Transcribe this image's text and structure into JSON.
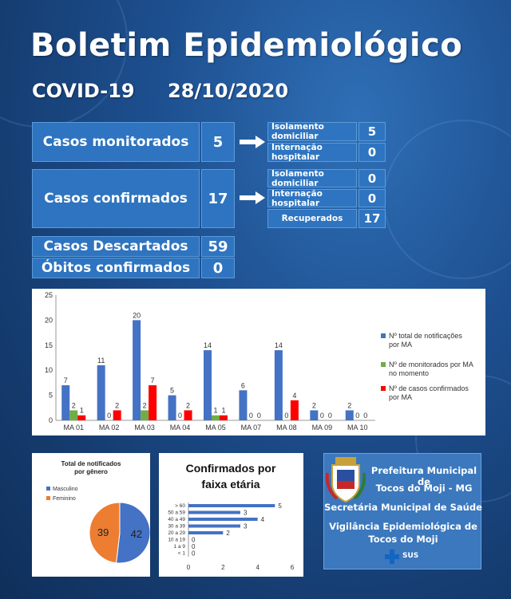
{
  "header": {
    "title": "Boletim Epidemiológico",
    "disease": "COVID-19",
    "date": "28/10/2020"
  },
  "summary": {
    "monitored": {
      "label": "Casos monitorados",
      "value": "5",
      "breakdown": [
        {
          "label": "Isolamento domiciliar",
          "value": "5"
        },
        {
          "label": "Internação hospitalar",
          "value": "0"
        }
      ]
    },
    "confirmed": {
      "label": "Casos confirmados",
      "value": "17",
      "breakdown": [
        {
          "label": "Isolamento domiciliar",
          "value": "0"
        },
        {
          "label": "Internação hospitalar",
          "value": "0"
        },
        {
          "label": "Recuperados",
          "value": "17"
        }
      ]
    },
    "discarded": {
      "label": "Casos Descartados",
      "value": "59"
    },
    "deaths": {
      "label": "Óbitos confirmados",
      "value": "0"
    }
  },
  "chart_data": [
    {
      "type": "bar",
      "categories": [
        "MA 01",
        "MA 02",
        "MA 03",
        "MA 04",
        "MA 05",
        "MA 07",
        "MA 08",
        "MA 09",
        "MA 10"
      ],
      "ylim": [
        0,
        25
      ],
      "yticks": [
        0,
        5,
        10,
        15,
        20,
        25
      ],
      "series": [
        {
          "name": "Nº total de notificações por MA",
          "color": "#4472c4",
          "values": [
            7,
            11,
            20,
            5,
            14,
            6,
            14,
            2,
            2
          ]
        },
        {
          "name": "Nº de monitorados por MA no momento",
          "color": "#70ad47",
          "values": [
            2,
            0,
            2,
            0,
            1,
            0,
            0,
            0,
            0
          ]
        },
        {
          "name": "Nº de casos confirmados por MA",
          "color": "#ff0000",
          "values": [
            1,
            2,
            7,
            2,
            1,
            0,
            4,
            0,
            0
          ]
        }
      ],
      "legend": "right"
    },
    {
      "type": "pie",
      "title": "Total de notificados  por gênero",
      "slices": [
        {
          "name": "Masculino",
          "value": 42,
          "color": "#4472c4"
        },
        {
          "name": "Feminino",
          "value": 39,
          "color": "#ed7d31"
        }
      ],
      "legend": "left"
    },
    {
      "type": "bar",
      "orientation": "horizontal",
      "title": "Confirmados por faixa etária",
      "categories": [
        "> 60",
        "50 a 59",
        "40 a 49",
        "30 a 39",
        "20 a 29",
        "10 a 19",
        "1 a 9",
        "< 1"
      ],
      "values": [
        5,
        3,
        4,
        3,
        2,
        0,
        0,
        0
      ],
      "xlim": [
        0,
        6
      ],
      "xticks": [
        0,
        2,
        4,
        6
      ],
      "color": "#4472c4"
    }
  ],
  "footer": {
    "lines": [
      "Prefeitura Municipal de",
      "Tocos do Moji - MG",
      "Secretária Municipal de Saúde",
      "Vigilância Epidemiológica de",
      "Tocos do Moji"
    ],
    "sus": "SUS"
  }
}
